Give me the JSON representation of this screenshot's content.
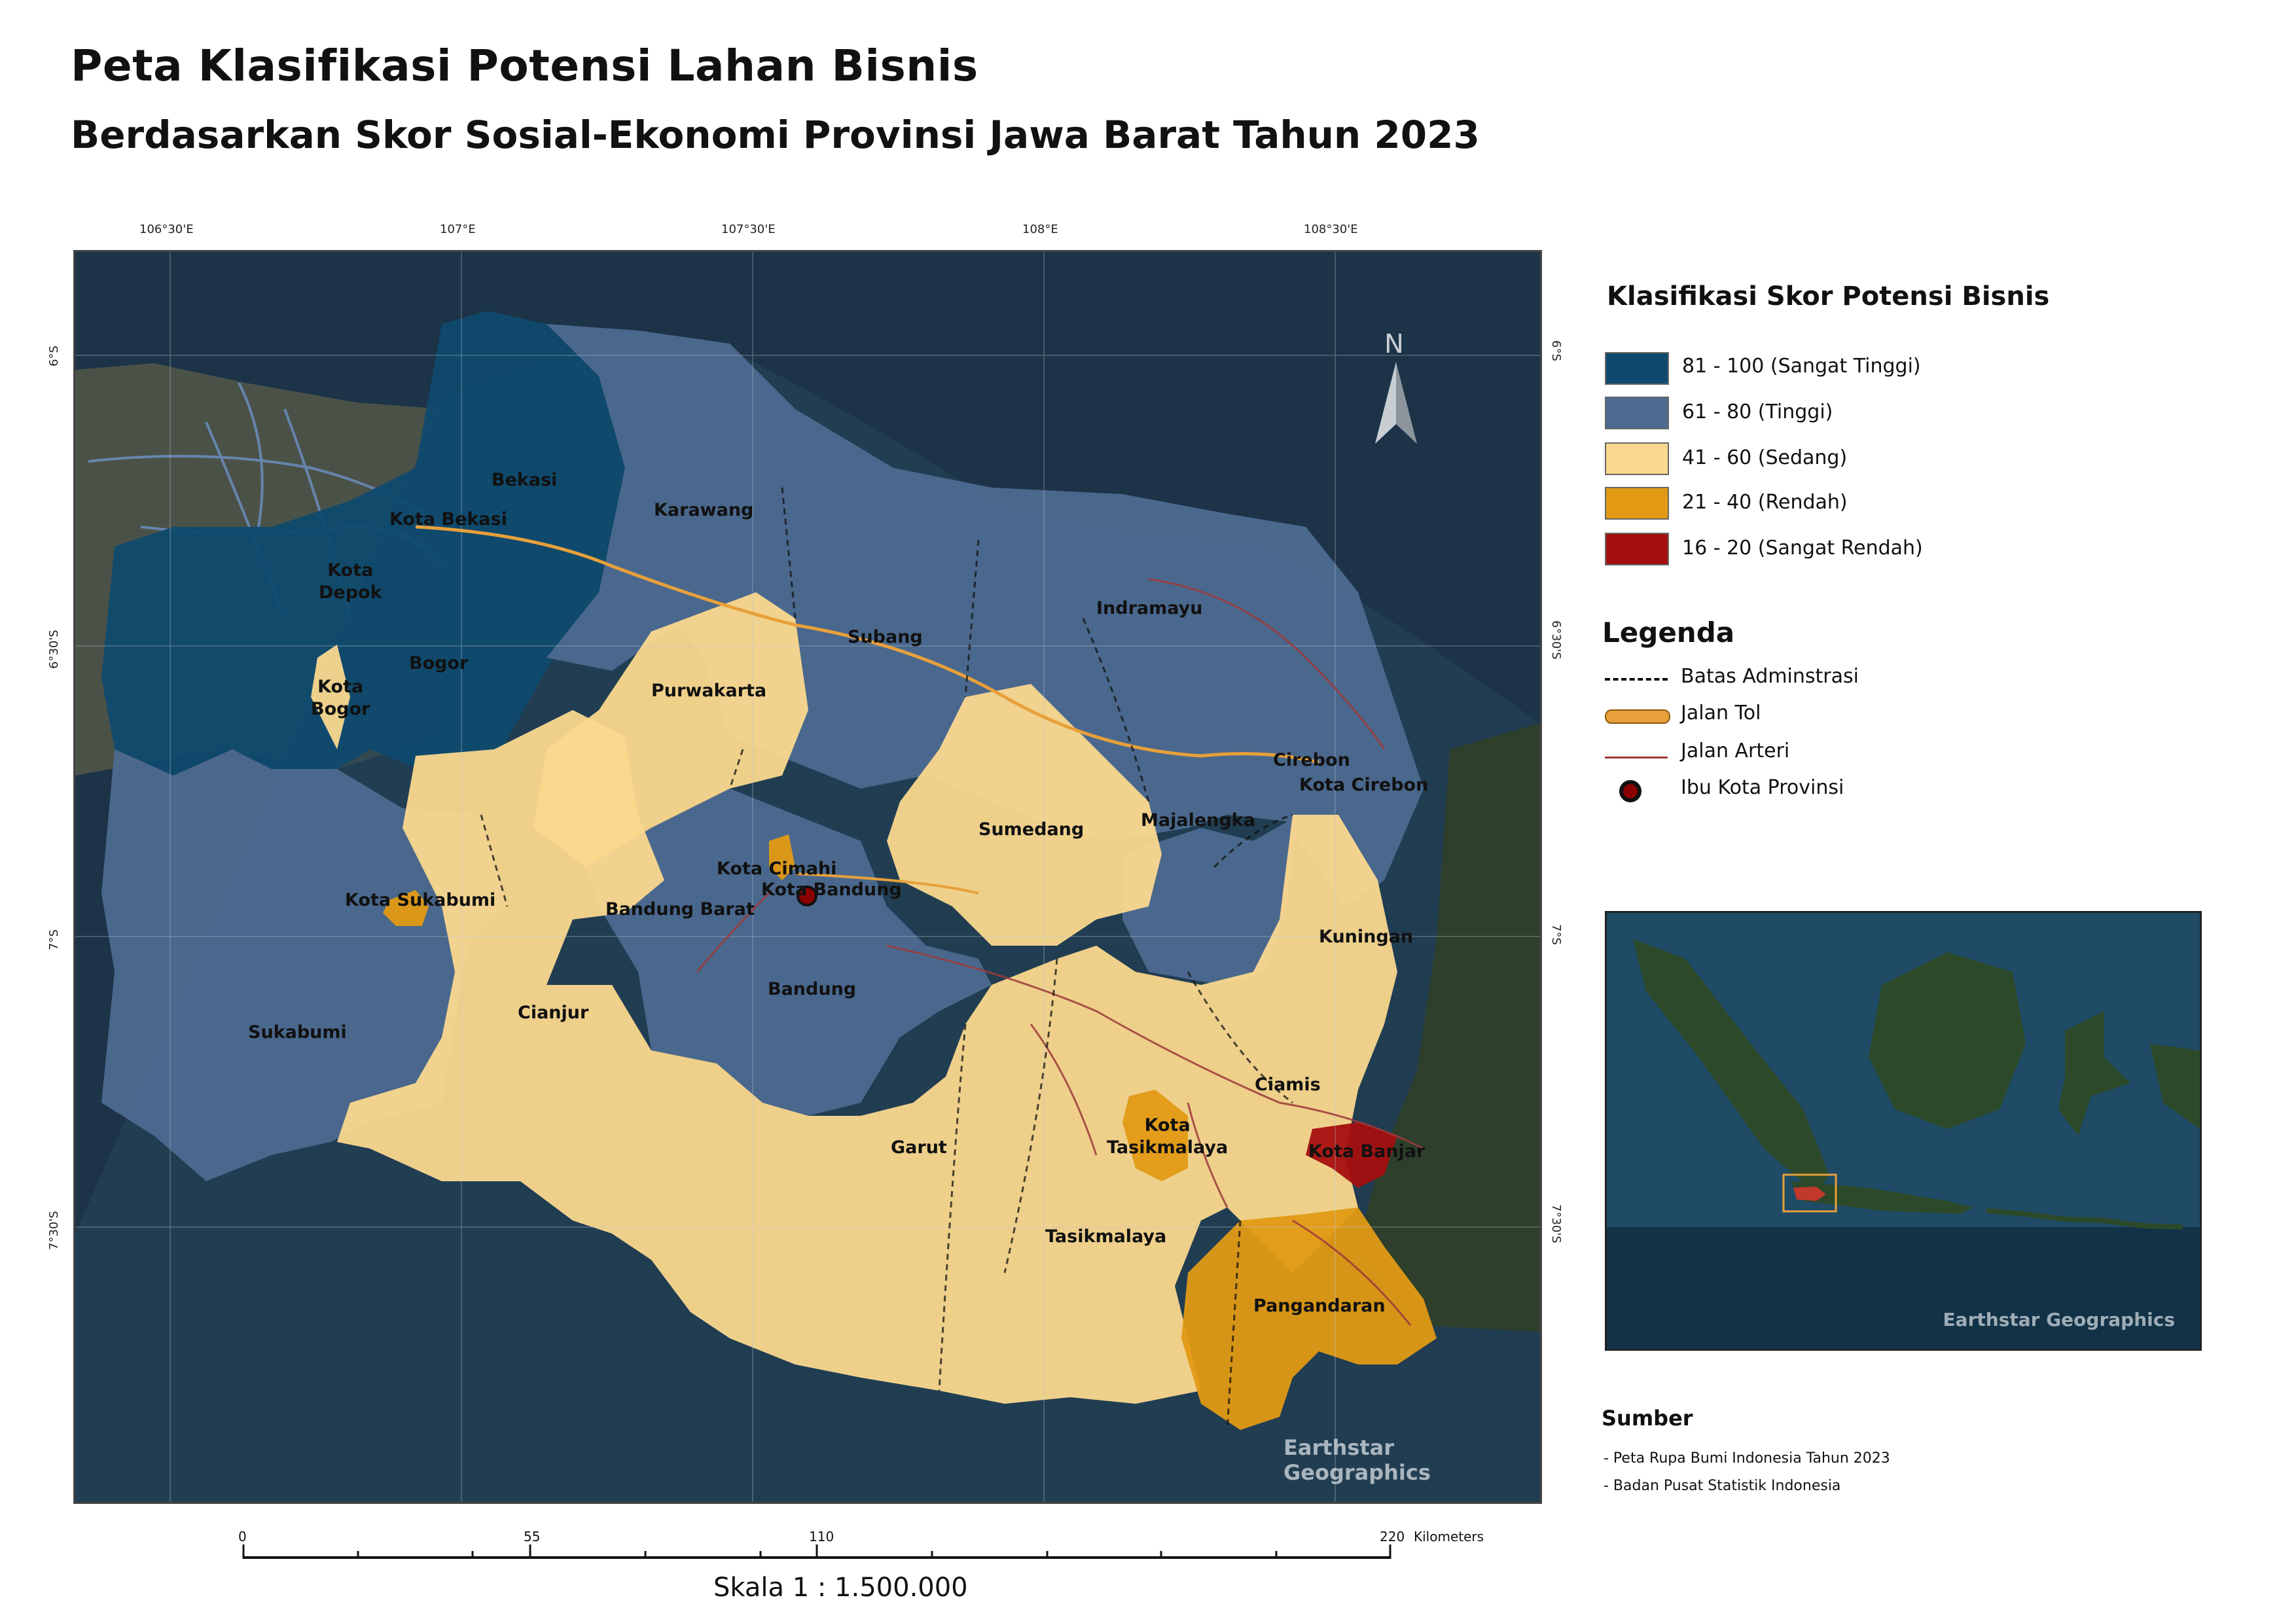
{
  "title": "Peta Klasifikasi Potensi Lahan Bisnis",
  "subtitle": "Berdasarkan Skor Sosial-Ekonomi Provinsi Jawa Barat Tahun 2023",
  "graticule": {
    "top": [
      "106°30'E",
      "107°E",
      "107°30'E",
      "108°E",
      "108°30'E"
    ],
    "left": [
      "6°S",
      "6°30'S",
      "7°S",
      "7°30'S"
    ],
    "right": [
      "6°S",
      "6°30'S",
      "7°S",
      "7°30'S"
    ]
  },
  "north_label": "N",
  "map_credit": "Earthstar Geographics",
  "regions": {
    "bekasi": "Bekasi",
    "kota_bekasi": "Kota Bekasi",
    "karawang": "Karawang",
    "kota_depok": "Kota\nDepok",
    "bogor": "Bogor",
    "kota_bogor": "Kota\nBogor",
    "purwakarta": "Purwakarta",
    "subang": "Subang",
    "indramayu": "Indramayu",
    "cirebon": "Cirebon",
    "kota_cirebon": "Kota Cirebon",
    "sumedang": "Sumedang",
    "majalengka": "Majalengka",
    "kota_cimahi": "Kota Cimahi",
    "kota_bandung": "Kota Bandung",
    "kota_sukabumi": "Kota Sukabumi",
    "bandung_barat": "Bandung Barat",
    "kuningan": "Kuningan",
    "bandung": "Bandung",
    "cianjur": "Cianjur",
    "sukabumi": "Sukabumi",
    "ciamis": "Ciamis",
    "garut": "Garut",
    "kota_tasikmalaya": "Kota\nTasikmalaya",
    "kota_banjar": "Kota Banjar",
    "tasikmalaya": "Tasikmalaya",
    "pangandaran": "Pangandaran"
  },
  "classification": {
    "title": "Klasifikasi Skor Potensi Bisnis",
    "classes": [
      {
        "label": "81 - 100  (Sangat Tinggi)",
        "color": "#0f4a6e"
      },
      {
        "label": "61 - 80  (Tinggi)",
        "color": "#4d6a90"
      },
      {
        "label": "41 - 60  (Sedang)",
        "color": "#fad88e"
      },
      {
        "label": "21 - 40  (Rendah)",
        "color": "#e29a14"
      },
      {
        "label": "16 - 20  (Sangat Rendah)",
        "color": "#a50f0f"
      }
    ]
  },
  "legenda": {
    "title": "Legenda",
    "items": [
      {
        "label": "Batas Adminstrasi",
        "symbol": "dashed-line-icon"
      },
      {
        "label": "Jalan Tol",
        "symbol": "toll-road-icon",
        "color": "#e8a03a"
      },
      {
        "label": "Jalan Arteri",
        "symbol": "arterial-road-icon",
        "color": "#9c3a3a"
      },
      {
        "label": "Ibu Kota Provinsi",
        "symbol": "capital-icon",
        "color": "#8b0000"
      }
    ]
  },
  "inset_credit": "Earthstar Geographics",
  "sumber": {
    "title": "Sumber",
    "items": [
      "- Peta Rupa Bumi Indonesia Tahun 2023",
      "- Badan Pusat  Statistik Indonesia"
    ]
  },
  "scale": {
    "ticks": [
      "0",
      "55",
      "110",
      "220"
    ],
    "unit": "Kilometers",
    "text": "Skala 1 : 1.500.000"
  }
}
